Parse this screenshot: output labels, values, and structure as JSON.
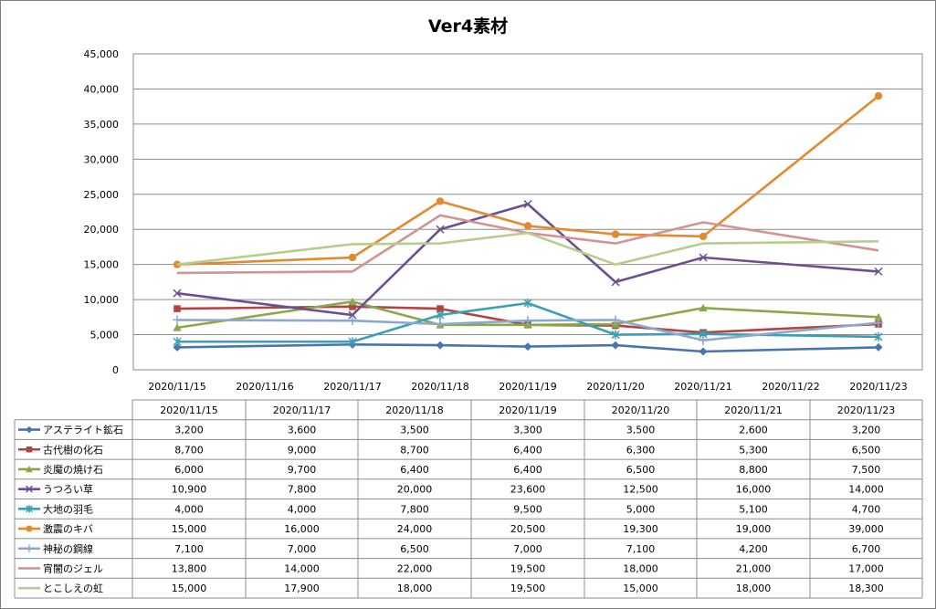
{
  "chart_data": {
    "type": "line",
    "title": "Ver4素材",
    "x_axis_labels": [
      "2020/11/15",
      "2020/11/16",
      "2020/11/17",
      "2020/11/18",
      "2020/11/19",
      "2020/11/20",
      "2020/11/21",
      "2020/11/22",
      "2020/11/23"
    ],
    "x": [
      "2020/11/15",
      "2020/11/17",
      "2020/11/18",
      "2020/11/19",
      "2020/11/20",
      "2020/11/21",
      "2020/11/23"
    ],
    "ylim": [
      0,
      45000
    ],
    "y_ticks": [
      "0",
      "5,000",
      "10,000",
      "15,000",
      "20,000",
      "25,000",
      "30,000",
      "35,000",
      "40,000",
      "45,000"
    ],
    "grid": true,
    "legend_placement": "table below chart",
    "series": [
      {
        "name": "アステライト鉱石",
        "color": "#4a74b0",
        "marker": "diamond",
        "values": [
          3200,
          3600,
          3500,
          3300,
          3500,
          2600,
          3200
        ]
      },
      {
        "name": "古代樹の化石",
        "color": "#b14542",
        "marker": "square",
        "values": [
          8700,
          9000,
          8700,
          6400,
          6300,
          5300,
          6500
        ]
      },
      {
        "name": "炎魔の焼け石",
        "color": "#8aa84a",
        "marker": "triangle",
        "values": [
          6000,
          9700,
          6400,
          6400,
          6500,
          8800,
          7500
        ]
      },
      {
        "name": "うつろい草",
        "color": "#6c4f8e",
        "marker": "x",
        "values": [
          10900,
          7800,
          20000,
          23600,
          12500,
          16000,
          14000
        ]
      },
      {
        "name": "大地の羽毛",
        "color": "#3c9fb2",
        "marker": "star",
        "values": [
          4000,
          4000,
          7800,
          9500,
          5000,
          5100,
          4700
        ]
      },
      {
        "name": "激震のキバ",
        "color": "#e38a30",
        "marker": "circle",
        "values": [
          15000,
          16000,
          24000,
          20500,
          19300,
          19000,
          39000
        ]
      },
      {
        "name": "神秘の鋼線",
        "color": "#8ea7d0",
        "marker": "plus",
        "values": [
          7100,
          7000,
          6500,
          7000,
          7100,
          4200,
          6700
        ]
      },
      {
        "name": "宵闇のジェル",
        "color": "#d39391",
        "marker": "none",
        "values": [
          13800,
          14000,
          22000,
          19500,
          18000,
          21000,
          17000
        ]
      },
      {
        "name": "とこしえの虹",
        "color": "#b6cd8e",
        "marker": "none",
        "values": [
          15000,
          17900,
          18000,
          19500,
          15000,
          18000,
          18300
        ]
      }
    ],
    "table_values": [
      [
        "3,200",
        "3,600",
        "3,500",
        "3,300",
        "3,500",
        "2,600",
        "3,200"
      ],
      [
        "8,700",
        "9,000",
        "8,700",
        "6,400",
        "6,300",
        "5,300",
        "6,500"
      ],
      [
        "6,000",
        "9,700",
        "6,400",
        "6,400",
        "6,500",
        "8,800",
        "7,500"
      ],
      [
        "10,900",
        "7,800",
        "20,000",
        "23,600",
        "12,500",
        "16,000",
        "14,000"
      ],
      [
        "4,000",
        "4,000",
        "7,800",
        "9,500",
        "5,000",
        "5,100",
        "4,700"
      ],
      [
        "15,000",
        "16,000",
        "24,000",
        "20,500",
        "19,300",
        "19,000",
        "39,000"
      ],
      [
        "7,100",
        "7,000",
        "6,500",
        "7,000",
        "7,100",
        "4,200",
        "6,700"
      ],
      [
        "13,800",
        "14,000",
        "22,000",
        "19,500",
        "18,000",
        "21,000",
        "17,000"
      ],
      [
        "15,000",
        "17,900",
        "18,000",
        "19,500",
        "15,000",
        "18,000",
        "18,300"
      ]
    ]
  }
}
